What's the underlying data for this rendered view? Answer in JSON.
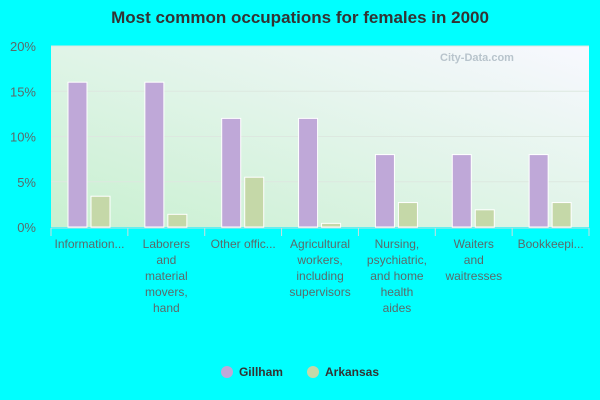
{
  "chart_data": {
    "type": "bar",
    "title": "Most common occupations for females in 2000",
    "categories": [
      "Information...",
      "Laborers\nand\nmaterial\nmovers,\nhand",
      "Other offic...",
      "Agricultural\nworkers,\nincluding\nsupervisors",
      "Nursing,\npsychiatric,\nand home\nhealth\naides",
      "Waiters\nand\nwaitresses",
      "Bookkeepi..."
    ],
    "series": [
      {
        "name": "Gillham",
        "color": "#bfa8d8",
        "values": [
          16,
          16,
          12,
          12,
          8,
          8,
          8
        ]
      },
      {
        "name": "Arkansas",
        "color": "#c5d8a8",
        "values": [
          3.4,
          1.4,
          5.5,
          0.4,
          2.7,
          1.9,
          2.7
        ]
      }
    ],
    "yticks": [
      "0%",
      "5%",
      "10%",
      "15%",
      "20%"
    ],
    "ylim": [
      0,
      20
    ],
    "grid": true,
    "legend": "bottom",
    "watermark": "City-Data.com"
  }
}
